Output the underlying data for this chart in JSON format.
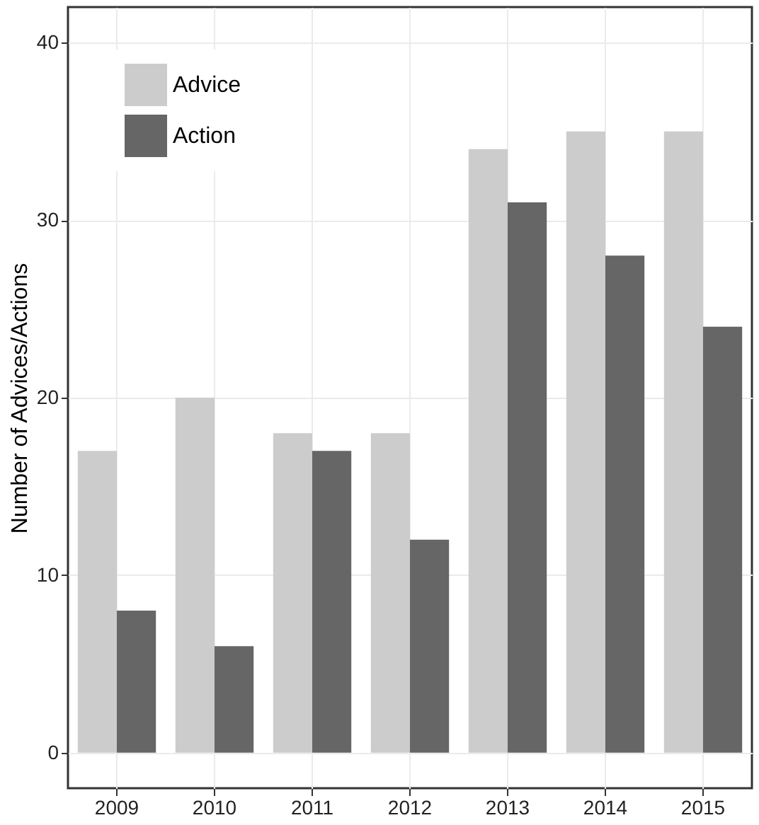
{
  "chart_data": {
    "type": "bar",
    "ylabel": "Number of Advices/Actions",
    "categories": [
      "2009",
      "2010",
      "2011",
      "2012",
      "2013",
      "2014",
      "2015"
    ],
    "series": [
      {
        "name": "Advice",
        "color": "#cccccc",
        "values": [
          17,
          20,
          18,
          18,
          34,
          35,
          35
        ]
      },
      {
        "name": "Action",
        "color": "#666666",
        "values": [
          8,
          6,
          17,
          12,
          31,
          28,
          24
        ]
      }
    ],
    "ylim": [
      -2,
      42
    ],
    "yticks": [
      0,
      10,
      20,
      30,
      40
    ],
    "grid": true,
    "legend": "top left"
  }
}
